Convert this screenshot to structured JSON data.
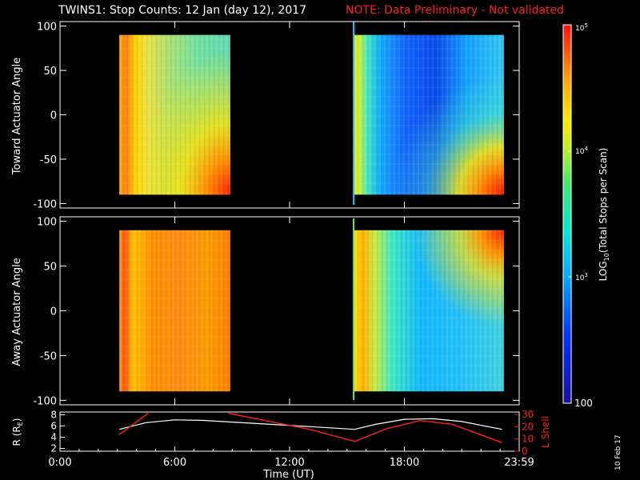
{
  "title": {
    "main": "TWINS1: Stop Counts: 12 Jan (day  12), 2017",
    "note": "NOTE: Data Preliminary - Not validated"
  },
  "generated_date": "10 Feb 17",
  "colors": {
    "background": "#000000",
    "axis": "#ffffff",
    "note_red": "#ff2020",
    "r_line": "#ffffff",
    "lshell_line": "#ff2020"
  },
  "chart_data": [
    {
      "type": "heatmap",
      "panel": "toward",
      "ylabel": "Toward Actuator Angle",
      "ylim": [
        -105,
        105
      ],
      "yticks": [
        "-100",
        "-50",
        "0",
        "50",
        "100"
      ],
      "data_blocks": [
        {
          "x_start_hours": 3.1,
          "x_end_hours": 8.9,
          "y_range": [
            -90,
            90
          ],
          "dominant_log10": 3.8,
          "description_colors": [
            "orange",
            "yellow",
            "green"
          ]
        },
        {
          "x_start_hours": 15.35,
          "x_end_hours": 23.2,
          "y_range": [
            -90,
            90
          ],
          "dominant_log10": 2.6,
          "description_colors": [
            "yellow",
            "cyan",
            "blue"
          ]
        }
      ]
    },
    {
      "type": "heatmap",
      "panel": "away",
      "ylabel": "Away Actuator Angle",
      "ylim": [
        -105,
        105
      ],
      "yticks": [
        "-100",
        "-50",
        "0",
        "50",
        "100"
      ],
      "data_blocks": [
        {
          "x_start_hours": 3.1,
          "x_end_hours": 8.9,
          "y_range": [
            -90,
            90
          ],
          "dominant_log10": 4.3,
          "description_colors": [
            "orange",
            "red"
          ]
        },
        {
          "x_start_hours": 15.35,
          "x_end_hours": 23.2,
          "y_range": [
            -90,
            90
          ],
          "dominant_log10": 3.1,
          "description_colors": [
            "orange",
            "green",
            "cyan"
          ]
        }
      ]
    },
    {
      "type": "line",
      "panel": "orbit",
      "xlabel": "Time (UT)",
      "xticks": [
        "0:00",
        "6:00",
        "12:00",
        "18:00",
        "23:59"
      ],
      "xlim_hours": [
        0,
        24
      ],
      "ylabel_left": "R (RE)",
      "ylim_left": [
        1.5,
        8.5
      ],
      "yticks_left": [
        "2",
        "4",
        "6",
        "8"
      ],
      "ylabel_right": "L Shell",
      "ylim_right": [
        0,
        32
      ],
      "yticks_right": [
        "0",
        "10",
        "20",
        "30"
      ],
      "series": [
        {
          "axis": "left",
          "color": "#ffffff",
          "x": [
            3.1,
            4.5,
            6.0,
            7.5,
            9.0,
            11.0,
            13.0,
            15.4,
            16.5,
            18.0,
            19.5,
            21.0,
            23.1
          ],
          "y": [
            5.4,
            6.6,
            7.1,
            7.0,
            6.7,
            6.3,
            5.9,
            5.4,
            6.3,
            7.2,
            7.3,
            6.8,
            5.4
          ]
        },
        {
          "axis": "right",
          "color": "#ff2020",
          "segments": [
            {
              "x": [
                3.1,
                4.6
              ],
              "y": [
                13.5,
                31
              ]
            },
            {
              "x": [
                8.8,
                13.0,
                15.4,
                17.0,
                18.8,
                20.5,
                23.1
              ],
              "y": [
                31,
                18,
                8,
                18,
                25,
                22,
                7
              ]
            }
          ]
        }
      ]
    },
    {
      "type": "colorbar",
      "label": "LOG10(Total Stops per Scan)",
      "range_log10": [
        2,
        5
      ],
      "tick_labels": [
        "100",
        "10^3",
        "10^4",
        "10^5"
      ],
      "tick_values": [
        100,
        1000,
        10000,
        100000
      ]
    }
  ],
  "labels": {
    "ylabel_top": "Toward Actuator Angle",
    "ylabel_mid": "Away Actuator Angle",
    "xlabel": "Time (UT)",
    "ylabel_r": "R (R",
    "ylabel_r_sub": "E",
    "ylabel_r_close": ")",
    "ylabel_lshell": "L Shell",
    "cbar_label_pre": "LOG",
    "cbar_label_sub": "10",
    "cbar_label_post": "(Total Stops per Scan)",
    "cbar_100": "100",
    "cbar_1e3_base": "10",
    "cbar_1e3_exp": "3",
    "cbar_1e4_base": "10",
    "cbar_1e4_exp": "4",
    "cbar_1e5_base": "10",
    "cbar_1e5_exp": "5"
  }
}
